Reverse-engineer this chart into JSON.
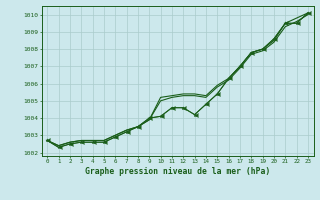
{
  "title": "Graphe pression niveau de la mer (hPa)",
  "xlabel_ticks": [
    0,
    1,
    2,
    3,
    4,
    5,
    6,
    7,
    8,
    9,
    10,
    11,
    12,
    13,
    14,
    15,
    16,
    17,
    18,
    19,
    20,
    21,
    22,
    23
  ],
  "ylim": [
    1001.8,
    1010.5
  ],
  "yticks": [
    1002,
    1003,
    1004,
    1005,
    1006,
    1007,
    1008,
    1009,
    1010
  ],
  "background_color": "#cce8ec",
  "grid_color": "#aacccc",
  "line_color": "#1a5e1a",
  "series": {
    "line1": [
      1002.7,
      1002.4,
      1002.6,
      1002.7,
      1002.7,
      1002.7,
      1003.0,
      1003.3,
      1003.5,
      1003.9,
      1005.2,
      1005.3,
      1005.4,
      1005.4,
      1005.3,
      1005.9,
      1006.3,
      1007.0,
      1007.8,
      1008.0,
      1008.5,
      1009.5,
      1009.8,
      1010.1
    ],
    "line2": [
      1002.7,
      1002.4,
      1002.6,
      1002.7,
      1002.7,
      1002.7,
      1003.0,
      1003.3,
      1003.5,
      1003.9,
      1005.0,
      1005.2,
      1005.3,
      1005.3,
      1005.2,
      1005.8,
      1006.2,
      1006.9,
      1007.7,
      1007.9,
      1008.4,
      1009.3,
      1009.6,
      1010.0
    ],
    "line3_marked": [
      1002.7,
      1002.3,
      1002.5,
      1002.6,
      1002.6,
      1002.6,
      1002.9,
      1003.2,
      1003.5,
      1004.0,
      1004.1,
      1004.6,
      1004.6,
      1004.2,
      1004.8,
      1005.4,
      1006.3,
      1007.0,
      1007.8,
      1008.0,
      1008.6,
      1009.5,
      1009.5,
      1010.1
    ],
    "line4_marked": [
      1002.7,
      1002.3,
      1002.5,
      1002.6,
      1002.6,
      1002.6,
      1002.9,
      1003.2,
      1003.5,
      1004.0,
      1004.1,
      1004.6,
      1004.6,
      1004.2,
      1004.8,
      1005.4,
      1006.3,
      1007.0,
      1007.8,
      1008.0,
      1008.6,
      1009.5,
      1009.5,
      1010.1
    ]
  }
}
